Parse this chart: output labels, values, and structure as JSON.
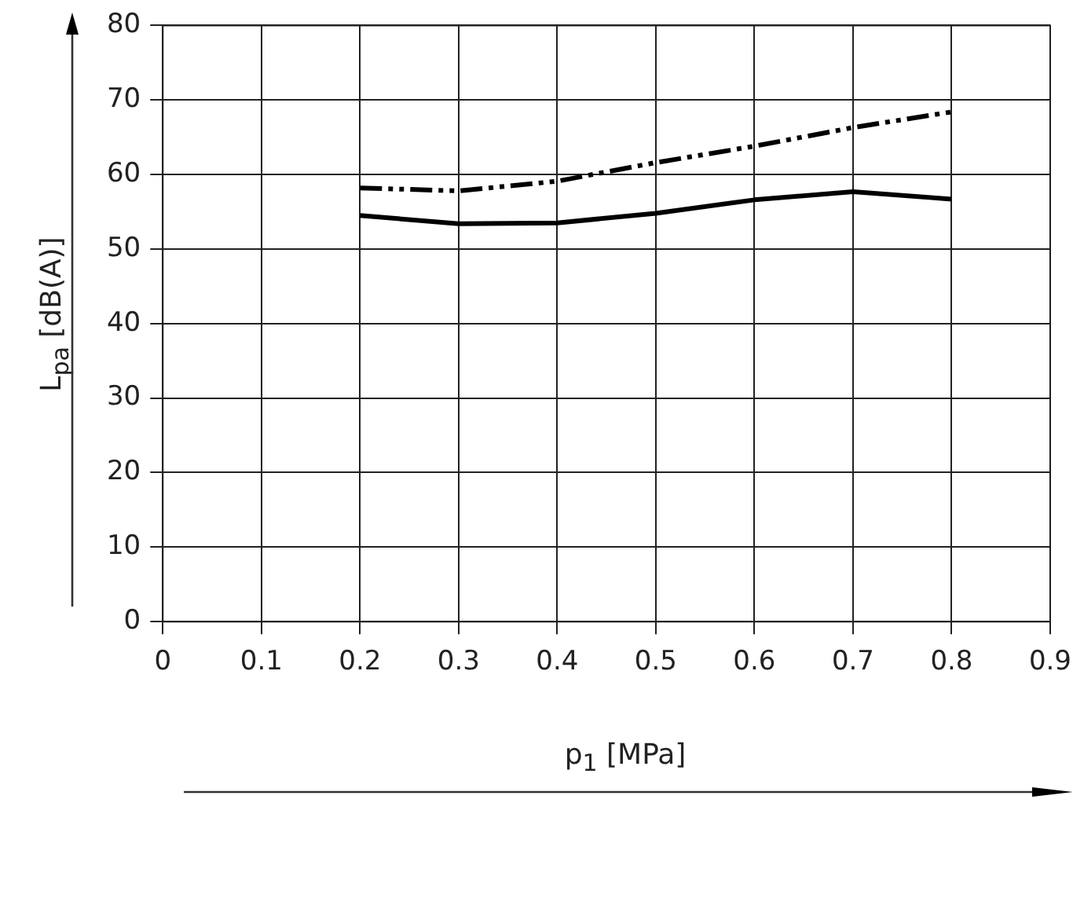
{
  "chart_data": {
    "type": "line",
    "xlabel": "p$_{1}$ [MPa]",
    "ylabel": "L$_{pa}$ [dB(A)]",
    "x": [
      0.2,
      0.3,
      0.4,
      0.5,
      0.6,
      0.7,
      0.8
    ],
    "series": [
      {
        "color": "#000000",
        "line_style": "solid",
        "values": [
          54.5,
          53.4,
          53.5,
          54.8,
          56.6,
          57.7,
          56.7
        ]
      },
      {
        "color": "#000000",
        "line_style": "dashed",
        "values": [
          58.2,
          57.8,
          59.1,
          61.6,
          63.8,
          66.3,
          68.4
        ]
      }
    ],
    "xlim": [
      0,
      0.9
    ],
    "xticks": [
      0,
      0.1,
      0.2,
      0.3,
      0.4,
      0.5,
      0.6,
      0.7,
      0.8,
      0.9
    ],
    "ylim": [
      0,
      80
    ],
    "yticks": [
      0,
      10,
      20,
      30,
      40,
      50,
      60,
      70,
      80
    ],
    "grid": true,
    "legend": false,
    "marker": "none"
  }
}
